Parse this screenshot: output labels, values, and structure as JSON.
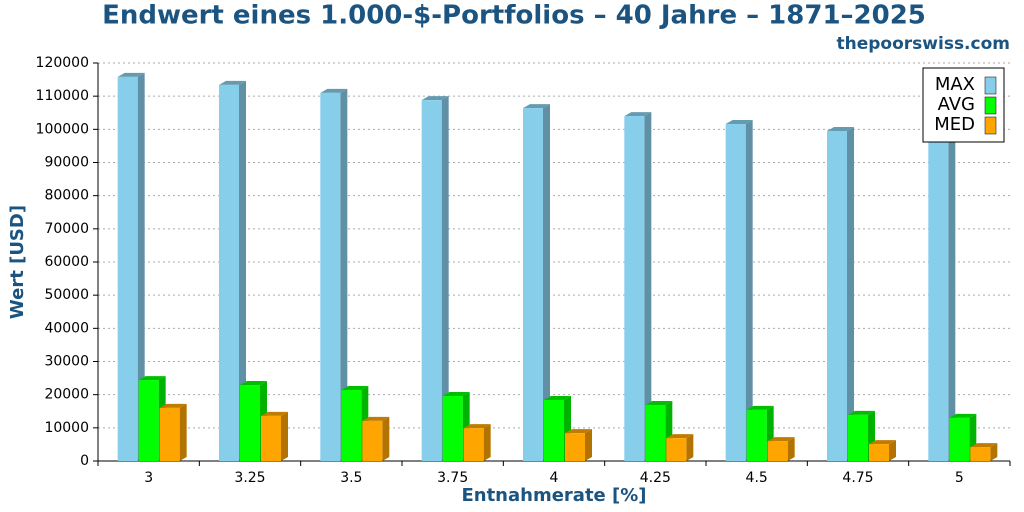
{
  "chart_data": {
    "type": "bar3d",
    "title": "Endwert eines 1.000-$-Portfolios – 40 Jahre – 1871–2025",
    "subtitle": "thepoorswiss.com",
    "x_label": "Entnahmerate [%]",
    "y_label": "Wert [USD]",
    "categories": [
      "3",
      "3.25",
      "3.5",
      "3.75",
      "4",
      "4.25",
      "4.5",
      "4.75",
      "5"
    ],
    "series": [
      {
        "name": "MAX",
        "color": "#87ceeb",
        "values": [
          115800,
          113400,
          111000,
          108800,
          106400,
          104000,
          101600,
          99500,
          97100
        ]
      },
      {
        "name": "AVG",
        "color": "#00ff00",
        "values": [
          24400,
          22900,
          21400,
          19600,
          18400,
          16900,
          15400,
          13900,
          13000
        ]
      },
      {
        "name": "MED",
        "color": "#ffa500",
        "values": [
          16000,
          13600,
          12100,
          9900,
          8400,
          6900,
          6000,
          5100,
          4200
        ]
      }
    ],
    "ylim": [
      0,
      120000
    ],
    "yticks": [
      0,
      10000,
      20000,
      30000,
      40000,
      50000,
      60000,
      70000,
      80000,
      90000,
      100000,
      110000,
      120000
    ],
    "grid": true,
    "legend": "top-right"
  }
}
